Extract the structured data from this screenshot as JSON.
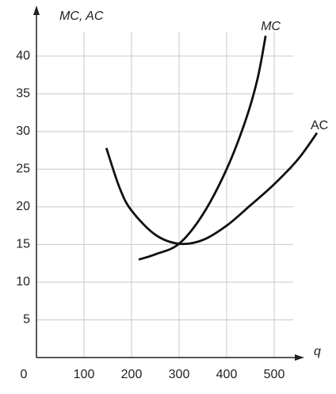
{
  "chart_data": {
    "type": "line",
    "y_label": "MC,  AC",
    "x_label": "q",
    "xlim": [
      0,
      590
    ],
    "ylim": [
      0,
      46.5
    ],
    "xticks": [
      0,
      100,
      200,
      300,
      400,
      500
    ],
    "yticks": [
      5,
      10,
      15,
      20,
      25,
      30,
      35,
      40
    ],
    "grid": true,
    "series": [
      {
        "name": "MC",
        "color": "#111111",
        "x": [
          215,
          250,
          300,
          350,
          400,
          440,
          465,
          482
        ],
        "values": [
          13,
          13.7,
          15.1,
          19,
          25,
          31.5,
          37,
          42.7
        ]
      },
      {
        "name": "AC",
        "color": "#111111",
        "x": [
          147,
          175,
          200,
          250,
          300,
          350,
          400,
          450,
          500,
          550,
          590
        ],
        "values": [
          27.8,
          22.5,
          19.5,
          16.3,
          15.1,
          15.6,
          17.5,
          20.2,
          23,
          26.3,
          29.8
        ]
      }
    ]
  }
}
